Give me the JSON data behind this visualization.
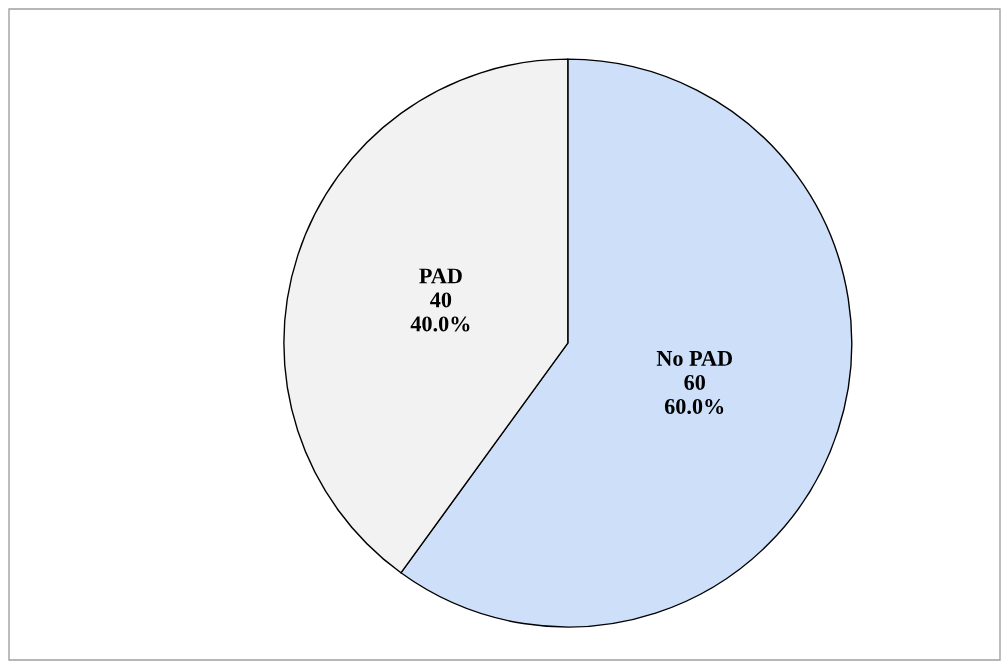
{
  "chart_data": {
    "type": "pie",
    "categories": [
      "No PAD",
      "PAD"
    ],
    "values": [
      60,
      40
    ],
    "colors": [
      "#cddff9",
      "#f2f2f2"
    ],
    "value_labels": [
      "60\n60.0%",
      "40\n40.0%"
    ]
  }
}
